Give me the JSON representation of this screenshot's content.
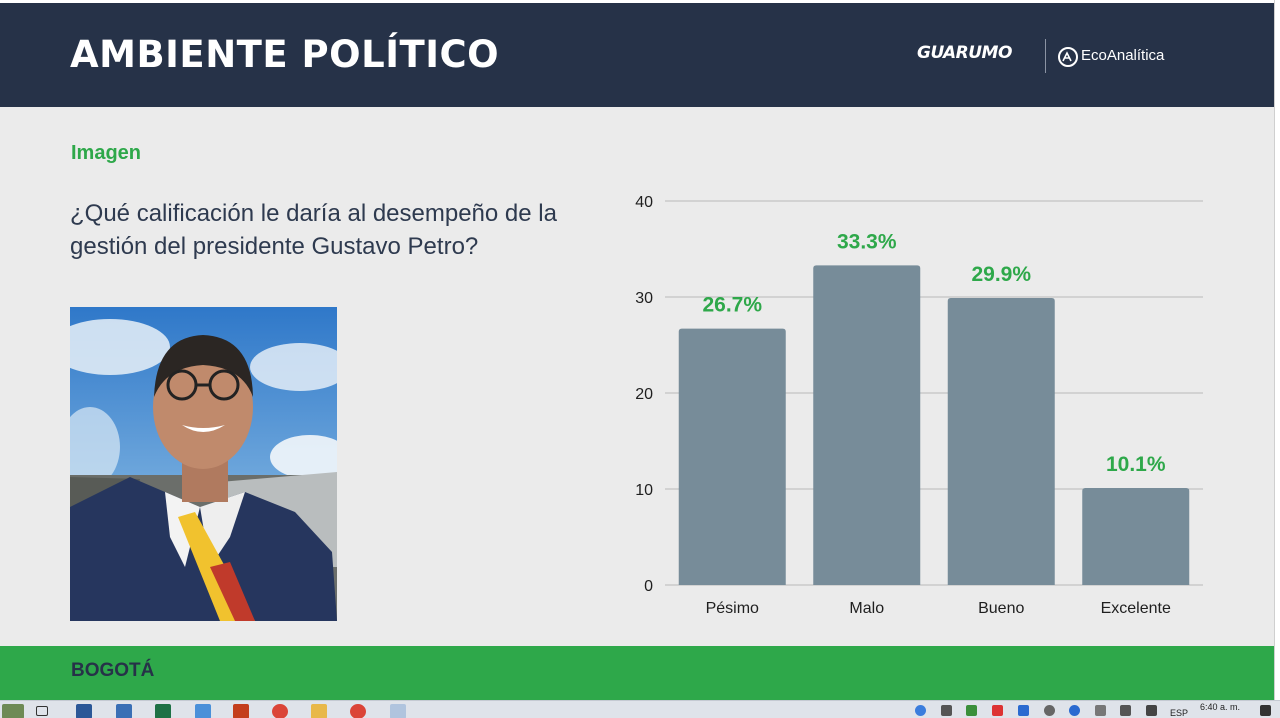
{
  "header": {
    "title": "AMBIENTE POLÍTICO",
    "logo_left": "GUARUMO",
    "logo_right": "EcoAnalítica"
  },
  "section_label": "Imagen",
  "question": "¿Qué calificación le daría al desempeño de la gestión del presidente Gustavo Petro?",
  "footer": {
    "label": "BOGOTÁ"
  },
  "colors": {
    "header_bg": "#263248",
    "accent_green": "#2ea84a",
    "bar": "#778c99",
    "background": "#ebebeb"
  },
  "chart_data": {
    "type": "bar",
    "categories": [
      "Pésimo",
      "Malo",
      "Bueno",
      "Excelente"
    ],
    "values": [
      26.7,
      33.3,
      29.9,
      10.1
    ],
    "data_labels": [
      "26.7%",
      "33.3%",
      "29.9%",
      "10.1%"
    ],
    "ylim": [
      0,
      40
    ],
    "yticks": [
      0,
      10,
      20,
      30,
      40
    ],
    "grid": true,
    "title": "",
    "xlabel": "",
    "ylabel": ""
  },
  "taskbar": {
    "language": "ESP",
    "time": "6:40 a. m.",
    "icons": [
      "windows-logo-icon",
      "task-view-icon",
      "word-icon",
      "network-icon",
      "excel-icon",
      "remote-desktop-icon",
      "powerpoint-icon",
      "chrome-icon",
      "file-explorer-icon",
      "chrome-icon",
      "paint-icon"
    ]
  }
}
